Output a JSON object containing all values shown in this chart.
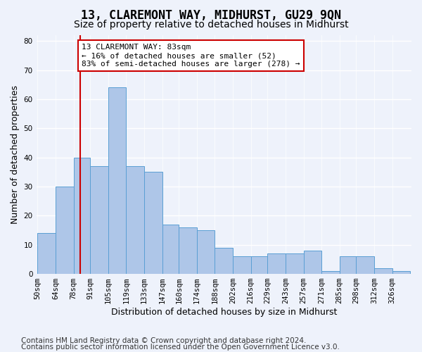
{
  "title": "13, CLAREMONT WAY, MIDHURST, GU29 9QN",
  "subtitle": "Size of property relative to detached houses in Midhurst",
  "xlabel": "Distribution of detached houses by size in Midhurst",
  "ylabel": "Number of detached properties",
  "bar_values": [
    14,
    30,
    40,
    37,
    64,
    37,
    35,
    17,
    16,
    15,
    9,
    6,
    6,
    7,
    7,
    8,
    1,
    6,
    6,
    2,
    1
  ],
  "bin_labels": [
    "50sqm",
    "64sqm",
    "78sqm",
    "91sqm",
    "105sqm",
    "119sqm",
    "133sqm",
    "147sqm",
    "160sqm",
    "174sqm",
    "188sqm",
    "202sqm",
    "216sqm",
    "229sqm",
    "243sqm",
    "257sqm",
    "271sqm",
    "285sqm",
    "298sqm",
    "312sqm",
    "326sqm"
  ],
  "all_bins": [
    50,
    64,
    78,
    91,
    105,
    119,
    133,
    147,
    160,
    174,
    188,
    202,
    216,
    229,
    243,
    257,
    271,
    285,
    298,
    312,
    326,
    340
  ],
  "bar_color": "#aec6e8",
  "bar_edge_color": "#5a9fd4",
  "red_line_x": 83,
  "vline_color": "#cc0000",
  "annotation_text": "13 CLAREMONT WAY: 83sqm\n← 16% of detached houses are smaller (52)\n83% of semi-detached houses are larger (278) →",
  "annotation_box_color": "white",
  "annotation_box_edge": "#cc0000",
  "ylim": [
    0,
    82
  ],
  "yticks": [
    0,
    10,
    20,
    30,
    40,
    50,
    60,
    70,
    80
  ],
  "footer1": "Contains HM Land Registry data © Crown copyright and database right 2024.",
  "footer2": "Contains public sector information licensed under the Open Government Licence v3.0.",
  "bg_color": "#eef2fb",
  "grid_color": "#ffffff",
  "title_fontsize": 12,
  "subtitle_fontsize": 10,
  "tick_label_fontsize": 7.5,
  "axis_label_fontsize": 9,
  "footer_fontsize": 7.5
}
